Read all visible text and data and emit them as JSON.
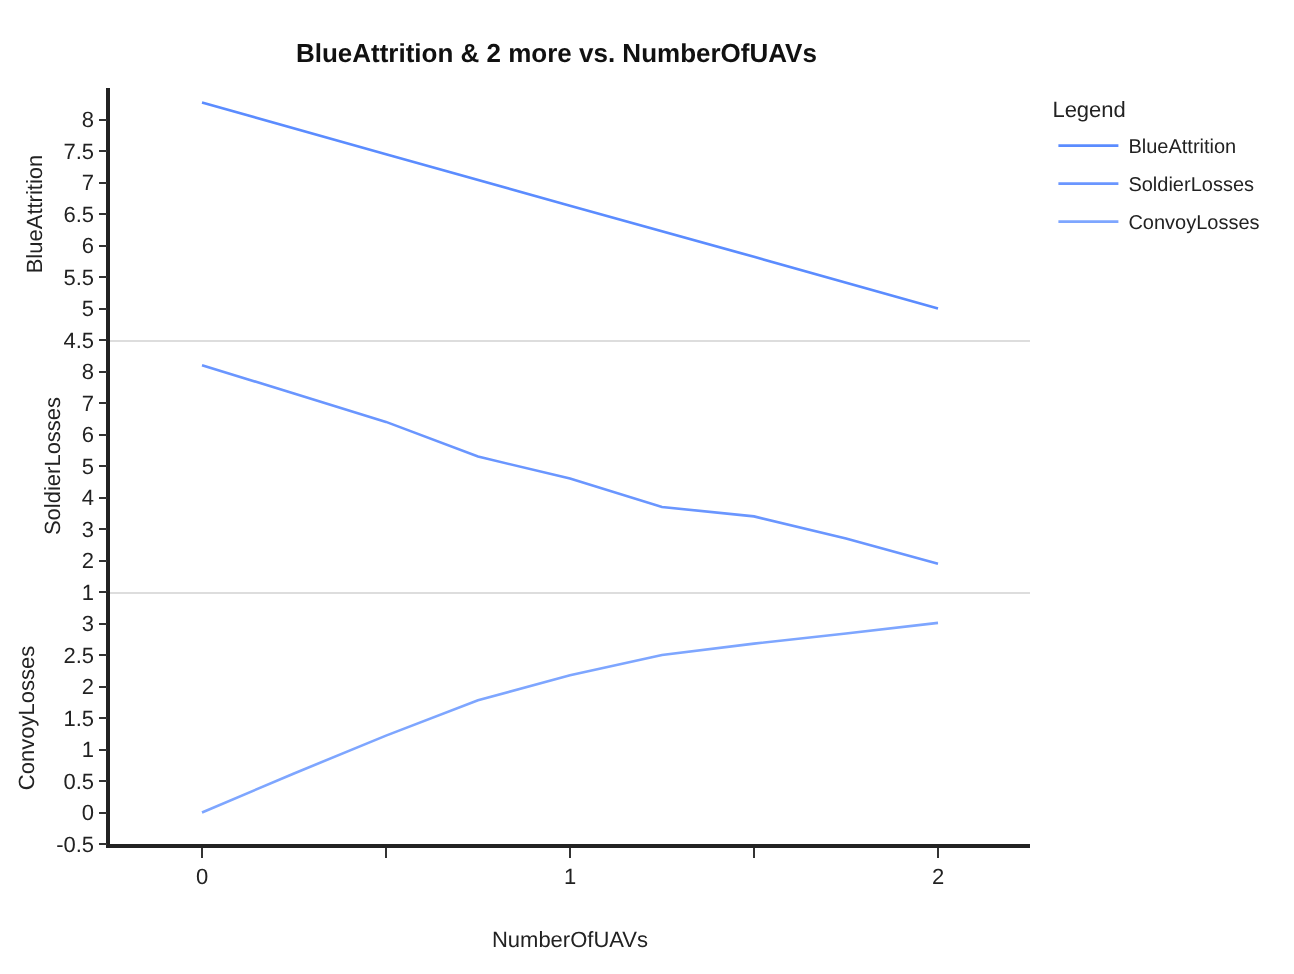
{
  "chart_data": [
    {
      "type": "line",
      "title": "BlueAttrition & 2 more vs. NumberOfUAVs",
      "ylabel": "BlueAttrition",
      "legend_title": "Legend",
      "legend": "right",
      "tick_labels": "y",
      "x": [
        0,
        0.5,
        1,
        1.5,
        2
      ],
      "xlim": [
        -0.25,
        2.25
      ],
      "ylim": [
        4.5,
        8.5
      ],
      "yticks": [
        4.5,
        5,
        5.5,
        6,
        6.5,
        7,
        7.5,
        8
      ],
      "series": [
        {
          "name": "BlueAttrition",
          "color": "#5b8cff",
          "values": [
            8.27,
            7.45,
            6.63,
            5.82,
            5.0
          ]
        }
      ]
    },
    {
      "type": "line",
      "ylabel": "SoldierLosses",
      "legend": "right",
      "tick_labels": "y",
      "x": [
        0,
        0.25,
        0.5,
        0.75,
        1,
        1.25,
        1.5,
        1.75,
        2
      ],
      "xlim": [
        -0.25,
        2.25
      ],
      "ylim": [
        1,
        9
      ],
      "yticks": [
        1,
        2,
        3,
        4,
        5,
        6,
        7,
        8
      ],
      "series": [
        {
          "name": "SoldierLosses",
          "color": "#6a96ff",
          "values": [
            8.2,
            7.3,
            6.4,
            5.3,
            4.6,
            3.7,
            3.4,
            2.7,
            1.9
          ]
        }
      ]
    },
    {
      "type": "line",
      "ylabel": "ConvoyLosses",
      "xlabel": "NumberOfUAVs",
      "legend": "right",
      "x": [
        0,
        0.25,
        0.5,
        0.75,
        1,
        1.25,
        1.5,
        1.75,
        2
      ],
      "xlim": [
        -0.25,
        2.25
      ],
      "xticks": [
        0,
        {
          "value": 0.5,
          "label": null
        },
        1,
        {
          "value": 1.5,
          "label": null
        },
        2
      ],
      "ylim": [
        -0.5,
        3.5
      ],
      "yticks": [
        -0.5,
        0,
        0.5,
        1,
        1.5,
        2,
        2.5,
        3
      ],
      "series": [
        {
          "name": "ConvoyLosses",
          "color": "#7ea6ff",
          "values": [
            0,
            0.62,
            1.22,
            1.78,
            2.18,
            2.5,
            2.68,
            2.84,
            3.01
          ]
        }
      ]
    }
  ]
}
